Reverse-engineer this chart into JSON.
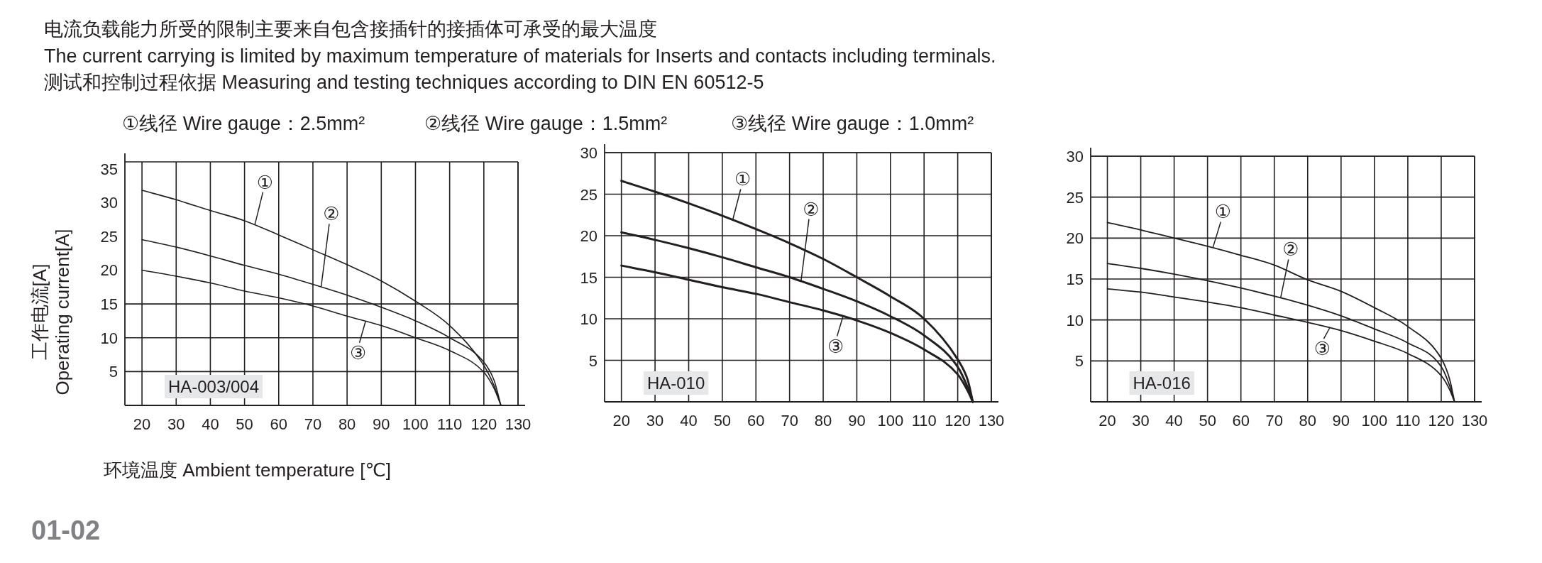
{
  "chart_data": [
    {
      "type": "line",
      "title": "HA-003/004",
      "xlabel": "环境温度 Ambient temperature [℃]",
      "ylabel": "工作电流[A] Operating current[A]",
      "x": [
        20,
        30,
        40,
        50,
        60,
        70,
        80,
        90,
        100,
        110,
        120,
        123,
        125
      ],
      "series": [
        {
          "color": "#231f20",
          "values": [
            31.8,
            30.4,
            28.8,
            27.3,
            25.2,
            23.0,
            20.8,
            18.4,
            15.4,
            11.8,
            5.9,
            2.9,
            0
          ]
        },
        {
          "color": "#231f20",
          "values": [
            24.5,
            23.4,
            22.1,
            20.7,
            19.4,
            17.9,
            16.3,
            14.5,
            12.5,
            10.0,
            6.4,
            3.7,
            0
          ]
        },
        {
          "color": "#231f20",
          "values": [
            20.0,
            19.1,
            18.1,
            16.9,
            15.9,
            14.7,
            13.2,
            11.8,
            10.0,
            8.1,
            4.9,
            2.5,
            0
          ]
        }
      ],
      "xlim": [
        15,
        130
      ],
      "xticks": [
        20,
        30,
        40,
        50,
        60,
        70,
        80,
        90,
        100,
        110,
        120,
        130
      ],
      "ylim": [
        0,
        36
      ],
      "yticks": [
        5,
        10,
        15,
        20,
        25,
        30,
        35
      ],
      "grid": "x",
      "ref_lines": [
        {
          "axis": "y",
          "value": 5
        },
        {
          "axis": "y",
          "value": 10
        },
        {
          "axis": "y",
          "value": 15
        }
      ],
      "annotations": [
        {
          "text": "①",
          "x": 56,
          "y": 33
        },
        {
          "text": "②",
          "x": 75.4,
          "y": 28.3
        },
        {
          "text": "③",
          "x": 83.2,
          "y": 7.8
        },
        "电流负载能力所受的限制主要来自包含接插针的接插体可承受的最大温度",
        "The current carrying is limited by maximum temperature of materials for Inserts and contacts including terminals.",
        "测试和控制过程依据 Measuring and testing techniques according to DIN EN 60512-5",
        "①线径 Wire gauge：2.5mm²",
        "②线径 Wire gauge：1.5mm²",
        "③线径 Wire gauge：1.0mm²",
        "01-02"
      ]
    },
    {
      "type": "line",
      "title": "HA-010",
      "x": [
        20,
        30,
        40,
        50,
        60,
        70,
        80,
        90,
        100,
        110,
        120,
        123,
        124.5
      ],
      "series": [
        {
          "color": "#231f20",
          "values": [
            26.6,
            25.3,
            23.9,
            22.4,
            20.8,
            19.1,
            17.2,
            15.0,
            12.7,
            10.0,
            5.1,
            2.6,
            0
          ]
        },
        {
          "color": "#231f20",
          "values": [
            20.4,
            19.5,
            18.5,
            17.4,
            16.2,
            15.0,
            13.6,
            12.1,
            10.3,
            8.0,
            4.2,
            1.7,
            0
          ]
        },
        {
          "color": "#231f20",
          "values": [
            16.4,
            15.6,
            14.7,
            13.8,
            13.0,
            12.0,
            11.0,
            9.8,
            8.3,
            6.3,
            3.3,
            1.3,
            0
          ]
        }
      ],
      "xlim": [
        15,
        130
      ],
      "xticks": [
        20,
        30,
        40,
        50,
        60,
        70,
        80,
        90,
        100,
        110,
        120,
        130
      ],
      "ylim": [
        0,
        30
      ],
      "yticks": [
        5,
        10,
        15,
        20,
        25,
        30
      ],
      "grid": true,
      "annotations": [
        {
          "text": "①",
          "x": 56.1,
          "y": 26.8
        },
        {
          "text": "②",
          "x": 76.4,
          "y": 23.2
        },
        {
          "text": "③",
          "x": 83.7,
          "y": 6.7
        }
      ]
    },
    {
      "type": "line",
      "title": "HA-016",
      "x": [
        20,
        30,
        40,
        50,
        60,
        70,
        80,
        90,
        100,
        110,
        120,
        122.5,
        124
      ],
      "series": [
        {
          "color": "#231f20",
          "values": [
            21.9,
            21.0,
            20.0,
            19.0,
            17.9,
            16.7,
            14.9,
            13.5,
            11.5,
            9.2,
            5.3,
            2.8,
            0
          ]
        },
        {
          "color": "#231f20",
          "values": [
            16.9,
            16.3,
            15.6,
            14.8,
            13.9,
            12.9,
            11.8,
            10.5,
            8.9,
            7.2,
            4.3,
            2.0,
            0
          ]
        },
        {
          "color": "#231f20",
          "values": [
            13.8,
            13.4,
            12.8,
            12.2,
            11.5,
            10.6,
            9.7,
            8.7,
            7.4,
            5.9,
            3.2,
            1.5,
            0
          ]
        }
      ],
      "xlim": [
        15,
        130
      ],
      "xticks": [
        20,
        30,
        40,
        50,
        60,
        70,
        80,
        90,
        100,
        110,
        120,
        130
      ],
      "ylim": [
        0,
        30
      ],
      "yticks": [
        5,
        10,
        15,
        20,
        25,
        30
      ],
      "grid": true,
      "annotations": [
        {
          "text": "①",
          "x": 54.6,
          "y": 23.2
        },
        {
          "text": "②",
          "x": 74.9,
          "y": 18.6
        },
        {
          "text": "③",
          "x": 84.4,
          "y": 6.5
        }
      ]
    }
  ]
}
